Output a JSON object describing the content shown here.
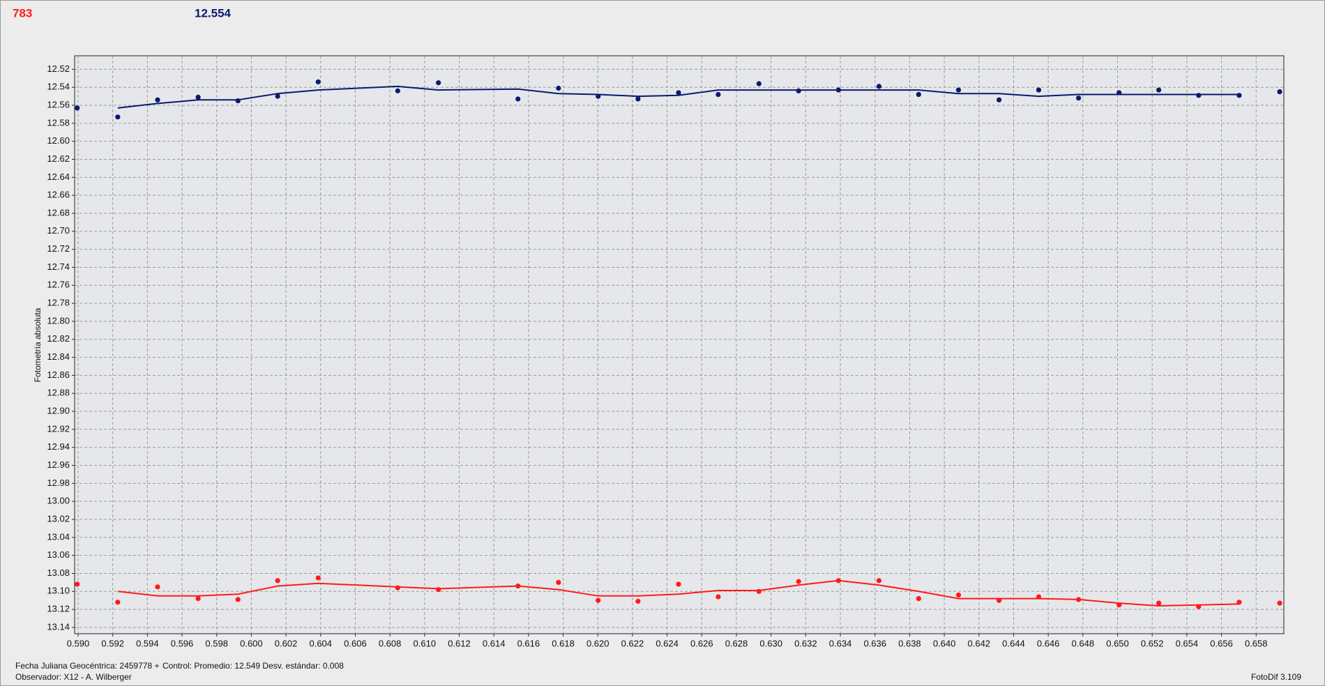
{
  "chart_data": {
    "type": "scatter",
    "header_count": "783",
    "header_value": "12.554",
    "ylabel": "Fotometría absoluta",
    "footer": {
      "date": "Fecha Juliana Geocéntrica: 2459778 +",
      "control": "Control: Promedio: 12.549   Desv. estándar: 0.008",
      "observer": "Observador: X12 - A. Wilberger",
      "software": "FotoDif 3.109"
    },
    "xlim": [
      0.5898,
      0.6596
    ],
    "ylim": [
      12.505,
      13.147
    ],
    "y_inverted": true,
    "grid": true,
    "xticks": [
      {
        "value": 0.59,
        "label": "0.590"
      },
      {
        "value": 0.592,
        "label": "0.592"
      },
      {
        "value": 0.594,
        "label": "0.594"
      },
      {
        "value": 0.596,
        "label": "0.596"
      },
      {
        "value": 0.598,
        "label": "0.598"
      },
      {
        "value": 0.6,
        "label": "0.600"
      },
      {
        "value": 0.602,
        "label": "0.602"
      },
      {
        "value": 0.604,
        "label": "0.604"
      },
      {
        "value": 0.606,
        "label": "0.606"
      },
      {
        "value": 0.608,
        "label": "0.608"
      },
      {
        "value": 0.61,
        "label": "0.610"
      },
      {
        "value": 0.612,
        "label": "0.612"
      },
      {
        "value": 0.614,
        "label": "0.614"
      },
      {
        "value": 0.616,
        "label": "0.616"
      },
      {
        "value": 0.618,
        "label": "0.618"
      },
      {
        "value": 0.62,
        "label": "0.620"
      },
      {
        "value": 0.622,
        "label": "0.622"
      },
      {
        "value": 0.624,
        "label": "0.624"
      },
      {
        "value": 0.626,
        "label": "0.626"
      },
      {
        "value": 0.628,
        "label": "0.628"
      },
      {
        "value": 0.63,
        "label": "0.630"
      },
      {
        "value": 0.632,
        "label": "0.632"
      },
      {
        "value": 0.634,
        "label": "0.634"
      },
      {
        "value": 0.636,
        "label": "0.636"
      },
      {
        "value": 0.638,
        "label": "0.638"
      },
      {
        "value": 0.64,
        "label": "0.640"
      },
      {
        "value": 0.642,
        "label": "0.642"
      },
      {
        "value": 0.644,
        "label": "0.644"
      },
      {
        "value": 0.646,
        "label": "0.646"
      },
      {
        "value": 0.648,
        "label": "0.648"
      },
      {
        "value": 0.65,
        "label": "0.650"
      },
      {
        "value": 0.652,
        "label": "0.652"
      },
      {
        "value": 0.654,
        "label": "0.654"
      },
      {
        "value": 0.656,
        "label": "0.656"
      },
      {
        "value": 0.658,
        "label": "0.658"
      }
    ],
    "yticks": [
      {
        "value": 12.52,
        "label": "12.52"
      },
      {
        "value": 12.54,
        "label": "12.54"
      },
      {
        "value": 12.56,
        "label": "12.56"
      },
      {
        "value": 12.58,
        "label": "12.58"
      },
      {
        "value": 12.6,
        "label": "12.60"
      },
      {
        "value": 12.62,
        "label": "12.62"
      },
      {
        "value": 12.64,
        "label": "12.64"
      },
      {
        "value": 12.66,
        "label": "12.66"
      },
      {
        "value": 12.68,
        "label": "12.68"
      },
      {
        "value": 12.7,
        "label": "12.70"
      },
      {
        "value": 12.72,
        "label": "12.72"
      },
      {
        "value": 12.74,
        "label": "12.74"
      },
      {
        "value": 12.76,
        "label": "12.76"
      },
      {
        "value": 12.78,
        "label": "12.78"
      },
      {
        "value": 12.8,
        "label": "12.80"
      },
      {
        "value": 12.82,
        "label": "12.82"
      },
      {
        "value": 12.84,
        "label": "12.84"
      },
      {
        "value": 12.86,
        "label": "12.86"
      },
      {
        "value": 12.88,
        "label": "12.88"
      },
      {
        "value": 12.9,
        "label": "12.90"
      },
      {
        "value": 12.92,
        "label": "12.92"
      },
      {
        "value": 12.94,
        "label": "12.94"
      },
      {
        "value": 12.96,
        "label": "12.96"
      },
      {
        "value": 12.98,
        "label": "12.98"
      },
      {
        "value": 13.0,
        "label": "13.00"
      },
      {
        "value": 13.02,
        "label": "13.02"
      },
      {
        "value": 13.04,
        "label": "13.04"
      },
      {
        "value": 13.06,
        "label": "13.06"
      },
      {
        "value": 13.08,
        "label": "13.08"
      },
      {
        "value": 13.1,
        "label": "13.10"
      },
      {
        "value": 13.12,
        "label": "13.12"
      },
      {
        "value": 13.14,
        "label": "13.14"
      }
    ],
    "series": [
      {
        "style": "markers",
        "color": "#0a1a6e",
        "x": [
          0.58995,
          0.59229,
          0.59459,
          0.59693,
          0.59923,
          0.60152,
          0.60386,
          0.60845,
          0.6108,
          0.61539,
          0.61773,
          0.62002,
          0.62232,
          0.62466,
          0.62695,
          0.6293,
          0.63159,
          0.63389,
          0.63623,
          0.63852,
          0.64082,
          0.64316,
          0.64545,
          0.64775,
          0.65009,
          0.65238,
          0.65468,
          0.65702,
          0.65936
        ],
        "values": [
          12.563,
          12.573,
          12.554,
          12.551,
          12.555,
          12.55,
          12.534,
          12.544,
          12.535,
          12.553,
          12.541,
          12.55,
          12.553,
          12.546,
          12.548,
          12.536,
          12.544,
          12.543,
          12.539,
          12.548,
          12.543,
          12.554,
          12.543,
          12.552,
          12.546,
          12.543,
          12.549,
          12.549,
          12.545
        ]
      },
      {
        "style": "markers",
        "color": "#ff1a1a",
        "x": [
          0.58995,
          0.59229,
          0.59459,
          0.59693,
          0.59923,
          0.60152,
          0.60386,
          0.60845,
          0.6108,
          0.61539,
          0.61773,
          0.62002,
          0.62232,
          0.62466,
          0.62695,
          0.6293,
          0.63159,
          0.63389,
          0.63623,
          0.63852,
          0.64082,
          0.64316,
          0.64545,
          0.64775,
          0.65009,
          0.65238,
          0.65468,
          0.65702,
          0.65936
        ],
        "values": [
          13.092,
          13.112,
          13.095,
          13.108,
          13.109,
          13.088,
          13.085,
          13.096,
          13.098,
          13.094,
          13.09,
          13.11,
          13.111,
          13.092,
          13.106,
          13.1,
          13.089,
          13.088,
          13.088,
          13.108,
          13.104,
          13.11,
          13.106,
          13.109,
          13.115,
          13.113,
          13.117,
          13.112,
          13.113
        ]
      },
      {
        "style": "line",
        "color": "#0a1a6e",
        "x": [
          0.59229,
          0.59459,
          0.59693,
          0.59923,
          0.60152,
          0.60386,
          0.60845,
          0.6108,
          0.61539,
          0.61773,
          0.62002,
          0.62232,
          0.62466,
          0.62695,
          0.6293,
          0.63159,
          0.63389,
          0.63623,
          0.63852,
          0.64082,
          0.64316,
          0.64545,
          0.64775,
          0.65009,
          0.65238,
          0.65468,
          0.65702
        ],
        "values": [
          12.563,
          12.558,
          12.554,
          12.554,
          12.547,
          12.543,
          12.539,
          12.543,
          12.542,
          12.547,
          12.548,
          12.55,
          12.549,
          12.543,
          12.543,
          12.543,
          12.543,
          12.543,
          12.543,
          12.547,
          12.547,
          12.55,
          12.548,
          12.548,
          12.548,
          12.548,
          12.548
        ]
      },
      {
        "style": "line",
        "color": "#ff1a1a",
        "x": [
          0.59229,
          0.59459,
          0.59693,
          0.59923,
          0.60152,
          0.60386,
          0.60845,
          0.6108,
          0.61539,
          0.61773,
          0.62002,
          0.62232,
          0.62466,
          0.62695,
          0.6293,
          0.63159,
          0.63389,
          0.63623,
          0.63852,
          0.64082,
          0.64316,
          0.64545,
          0.64775,
          0.65009,
          0.65238,
          0.65468,
          0.65702
        ],
        "values": [
          13.1,
          13.105,
          13.105,
          13.103,
          13.094,
          13.091,
          13.095,
          13.097,
          13.094,
          13.098,
          13.105,
          13.105,
          13.103,
          13.099,
          13.099,
          13.093,
          13.088,
          13.093,
          13.1,
          13.108,
          13.108,
          13.108,
          13.109,
          13.113,
          13.116,
          13.115,
          13.114
        ]
      }
    ]
  }
}
